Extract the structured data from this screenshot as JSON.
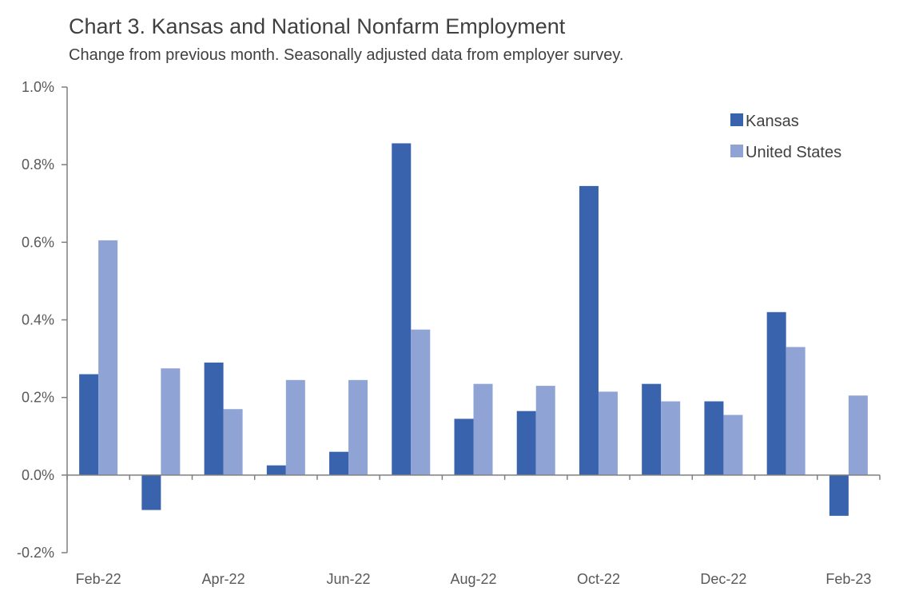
{
  "chart_data": {
    "type": "bar",
    "title": "Chart 3. Kansas and National Nonfarm Employment",
    "subtitle": "Change from previous month. Seasonally adjusted data from employer survey.",
    "categories": [
      "Feb-22",
      "Mar-22",
      "Apr-22",
      "May-22",
      "Jun-22",
      "Jul-22",
      "Aug-22",
      "Sep-22",
      "Oct-22",
      "Nov-22",
      "Dec-22",
      "Jan-23",
      "Feb-23"
    ],
    "x_tick_labels": [
      "Feb-22",
      "",
      "Apr-22",
      "",
      "Jun-22",
      "",
      "Aug-22",
      "",
      "Oct-22",
      "",
      "Dec-22",
      "",
      "Feb-23"
    ],
    "series": [
      {
        "name": "Kansas",
        "color": "#3a63ae",
        "values": [
          0.26,
          -0.09,
          0.29,
          0.025,
          0.06,
          0.855,
          0.145,
          0.165,
          0.745,
          0.235,
          0.19,
          0.42,
          -0.105
        ]
      },
      {
        "name": "United States",
        "color": "#8fa4d4",
        "values": [
          0.605,
          0.275,
          0.17,
          0.245,
          0.245,
          0.375,
          0.235,
          0.23,
          0.215,
          0.19,
          0.155,
          0.33,
          0.205
        ]
      }
    ],
    "ylim": [
      -0.2,
      1.0
    ],
    "y_ticks": [
      -0.2,
      0.0,
      0.2,
      0.4,
      0.6,
      0.8,
      1.0
    ],
    "y_tick_labels": [
      "-0.2%",
      "0.0%",
      "0.2%",
      "0.4%",
      "0.6%",
      "0.8%",
      "1.0%"
    ],
    "xlabel": "",
    "ylabel": "",
    "grid": false,
    "legend_position": "top-right"
  }
}
